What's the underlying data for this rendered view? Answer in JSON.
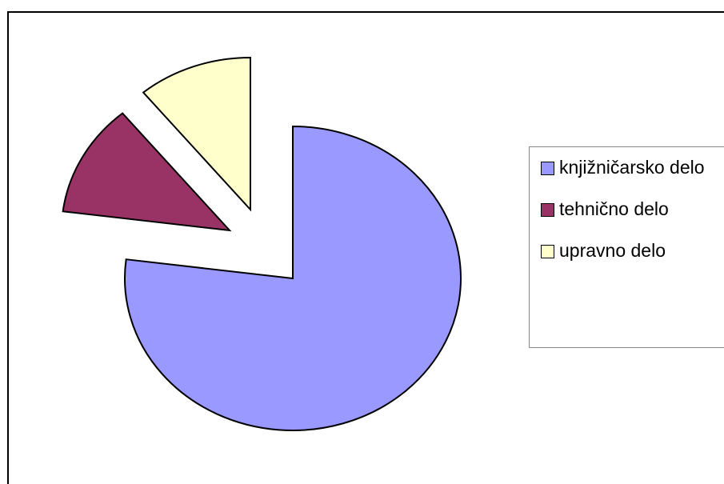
{
  "chart_data": {
    "type": "pie",
    "categories": [
      "knjižničarsko delo",
      "tehnično delo",
      "upravno delo"
    ],
    "values": [
      77,
      12,
      11
    ],
    "colors": [
      "#9999ff",
      "#993366",
      "#ffffcc"
    ],
    "legend": "right"
  }
}
